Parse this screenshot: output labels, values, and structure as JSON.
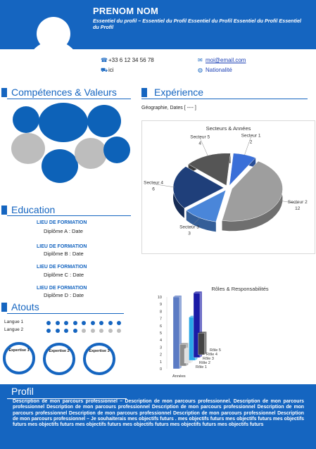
{
  "header": {
    "name": "PRENOM NOM",
    "subtitle": "Essentiel du profil – Essentiel du Profil Essentiel du Profil Essentiel du Profil Essentiel du Profil"
  },
  "contact": {
    "phone": "+33 6 12 34 56 78",
    "email": "moi@email.com",
    "address": "ici",
    "nationality": "Nationalité",
    "icons": {
      "phone": "phone-icon",
      "email": "envelope-icon",
      "address": "car-icon",
      "nationality": "globe-icon"
    }
  },
  "sections": {
    "competences": "Compétences & Valeurs",
    "experience": "Expérience",
    "education": "Education",
    "atouts": "Atouts",
    "profil": "Profil"
  },
  "experience": {
    "location_dates": "Géographie, Dates [ ---- ]"
  },
  "education": [
    {
      "lieu": "LIEU DE FORMATION",
      "diplome": "Diplôme A : Date"
    },
    {
      "lieu": "LIEU DE FORMATION",
      "diplome": "Diplôme B : Date"
    },
    {
      "lieu": "LIEU DE FORMATION",
      "diplome": "Diplôme C : Date"
    },
    {
      "lieu": "LIEU DE FORMATION",
      "diplome": "Diplôme D : Date"
    }
  ],
  "atouts": {
    "langues": [
      {
        "label": "Langue 1",
        "level": 9,
        "max": 9
      },
      {
        "label": "Langue 2",
        "level": 4,
        "max": 9
      }
    ],
    "expertises": [
      "Expertise 1",
      "Expertise 2",
      "Expertise 3"
    ]
  },
  "profil": {
    "text": "Description de mon parcours professionnel – Description de mon parcours professionnel. Description de mon parcours professionnel Description de mon parcours professionnel Description de mon parcours professionnel Description de mon parcours professionnel Description de mon parcours professionnel Description de mon parcours professionnel Description de mon parcours professionnel – Je souhaiterais mes objectifs futurs . mes objectifs futurs mes objectifs futurs mes objectifs futurs mes objectifs futurs mes objectifs futurs mes objectifs futurs mes objectifs futurs mes objectifs futurs"
  },
  "colors": {
    "accent": "#1565c0",
    "grey": "#bdbdbd",
    "white": "#ffffff"
  },
  "chart_data": [
    {
      "type": "pie",
      "title": "Secteurs & Années",
      "categories": [
        "Secteur 1",
        "Secteur 2",
        "Secteur 3",
        "Secteur 4",
        "Secteur 5"
      ],
      "values": [
        2,
        12,
        3,
        6,
        4
      ],
      "colors": [
        "#3a6fd8",
        "#9e9e9e",
        "#4a86d9",
        "#1f3f7a",
        "#555555"
      ],
      "style": "3d-exploded"
    },
    {
      "type": "bar",
      "title": "Rôles & Responsabilités",
      "categories": [
        "Années",
        "Rôle 1",
        "Rôle 2",
        "Rôle 3",
        "Rôle 4",
        "Rôle 5"
      ],
      "values": [
        10,
        3,
        2,
        6,
        9,
        3
      ],
      "colors": [
        "#5b7bc4",
        "#8c8c8c",
        "#e0e0e0",
        "#2aa7e8",
        "#1a1aa6",
        "#444444"
      ],
      "ylim": [
        0,
        10
      ],
      "yticks": [
        "0",
        "1",
        "2",
        "3",
        "4",
        "5",
        "6",
        "7",
        "8",
        "9",
        "10"
      ],
      "style": "3d"
    }
  ]
}
